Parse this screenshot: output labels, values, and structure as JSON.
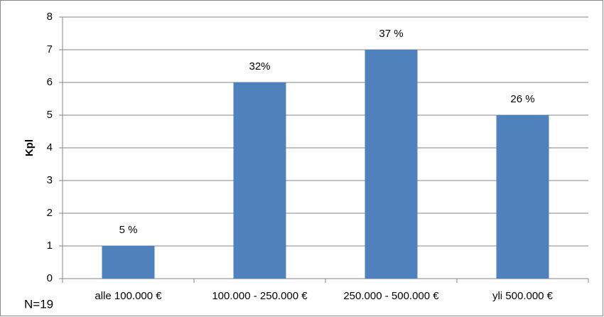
{
  "chart_data": {
    "type": "bar",
    "y_label": "Kpl",
    "note": "N=19",
    "categories": [
      "alle 100.000 €",
      "100.000 - 250.000 €",
      "250.000 - 500.000 €",
      "yli 500.000 €"
    ],
    "values": [
      1,
      6,
      7,
      5
    ],
    "bar_annotations": [
      "5 %",
      "32%",
      "37 %",
      "26 %"
    ],
    "color": "#4f81bd",
    "ylim": [
      0,
      8
    ],
    "yticks": [
      0,
      1,
      2,
      3,
      4,
      5,
      6,
      7,
      8
    ],
    "grid": true
  }
}
